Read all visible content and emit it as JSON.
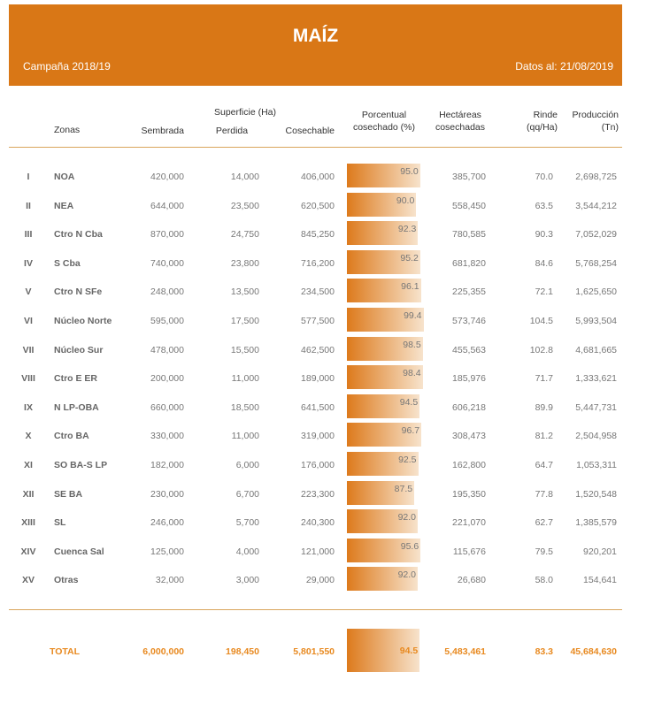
{
  "header": {
    "title": "MAÍZ",
    "campaign": "Campaña 2018/19",
    "date": "Datos al: 21/08/2019"
  },
  "columns": {
    "zonas": "Zonas",
    "superficie": "Superficie (Ha)",
    "sembrada": "Sembrada",
    "perdida": "Perdida",
    "cosechable": "Cosechable",
    "porcentual_1": "Porcentual",
    "porcentual_2": "cosechado (%)",
    "hectareas_1": "Hectáreas",
    "hectareas_2": "cosechadas",
    "rinde_1": "Rinde",
    "rinde_2": "(qq/Ha)",
    "produccion_1": "Producción",
    "produccion_2": "(Tn)"
  },
  "rows": [
    {
      "num": "I",
      "zona": "NOA",
      "sembrada": "420,000",
      "perdida": "14,000",
      "cosechable": "406,000",
      "pct": 95.0,
      "pct_label": "95.0",
      "hectareas": "385,700",
      "rinde": "70.0",
      "produccion": "2,698,725"
    },
    {
      "num": "II",
      "zona": "NEA",
      "sembrada": "644,000",
      "perdida": "23,500",
      "cosechable": "620,500",
      "pct": 90.0,
      "pct_label": "90.0",
      "hectareas": "558,450",
      "rinde": "63.5",
      "produccion": "3,544,212"
    },
    {
      "num": "III",
      "zona": "Ctro N Cba",
      "sembrada": "870,000",
      "perdida": "24,750",
      "cosechable": "845,250",
      "pct": 92.3,
      "pct_label": "92.3",
      "hectareas": "780,585",
      "rinde": "90.3",
      "produccion": "7,052,029"
    },
    {
      "num": "IV",
      "zona": "S Cba",
      "sembrada": "740,000",
      "perdida": "23,800",
      "cosechable": "716,200",
      "pct": 95.2,
      "pct_label": "95.2",
      "hectareas": "681,820",
      "rinde": "84.6",
      "produccion": "5,768,254"
    },
    {
      "num": "V",
      "zona": "Ctro N SFe",
      "sembrada": "248,000",
      "perdida": "13,500",
      "cosechable": "234,500",
      "pct": 96.1,
      "pct_label": "96.1",
      "hectareas": "225,355",
      "rinde": "72.1",
      "produccion": "1,625,650"
    },
    {
      "num": "VI",
      "zona": "Núcleo Norte",
      "sembrada": "595,000",
      "perdida": "17,500",
      "cosechable": "577,500",
      "pct": 99.4,
      "pct_label": "99.4",
      "hectareas": "573,746",
      "rinde": "104.5",
      "produccion": "5,993,504"
    },
    {
      "num": "VII",
      "zona": "Núcleo Sur",
      "sembrada": "478,000",
      "perdida": "15,500",
      "cosechable": "462,500",
      "pct": 98.5,
      "pct_label": "98.5",
      "hectareas": "455,563",
      "rinde": "102.8",
      "produccion": "4,681,665"
    },
    {
      "num": "VIII",
      "zona": "Ctro E ER",
      "sembrada": "200,000",
      "perdida": "11,000",
      "cosechable": "189,000",
      "pct": 98.4,
      "pct_label": "98.4",
      "hectareas": "185,976",
      "rinde": "71.7",
      "produccion": "1,333,621"
    },
    {
      "num": "IX",
      "zona": "N LP-OBA",
      "sembrada": "660,000",
      "perdida": "18,500",
      "cosechable": "641,500",
      "pct": 94.5,
      "pct_label": "94.5",
      "hectareas": "606,218",
      "rinde": "89.9",
      "produccion": "5,447,731"
    },
    {
      "num": "X",
      "zona": "Ctro BA",
      "sembrada": "330,000",
      "perdida": "11,000",
      "cosechable": "319,000",
      "pct": 96.7,
      "pct_label": "96.7",
      "hectareas": "308,473",
      "rinde": "81.2",
      "produccion": "2,504,958"
    },
    {
      "num": "XI",
      "zona": "SO BA-S LP",
      "sembrada": "182,000",
      "perdida": "6,000",
      "cosechable": "176,000",
      "pct": 92.5,
      "pct_label": "92.5",
      "hectareas": "162,800",
      "rinde": "64.7",
      "produccion": "1,053,311"
    },
    {
      "num": "XII",
      "zona": "SE BA",
      "sembrada": "230,000",
      "perdida": "6,700",
      "cosechable": "223,300",
      "pct": 87.5,
      "pct_label": "87.5",
      "hectareas": "195,350",
      "rinde": "77.8",
      "produccion": "1,520,548"
    },
    {
      "num": "XIII",
      "zona": "SL",
      "sembrada": "246,000",
      "perdida": "5,700",
      "cosechable": "240,300",
      "pct": 92.0,
      "pct_label": "92.0",
      "hectareas": "221,070",
      "rinde": "62.7",
      "produccion": "1,385,579"
    },
    {
      "num": "XIV",
      "zona": "Cuenca Sal",
      "sembrada": "125,000",
      "perdida": "4,000",
      "cosechable": "121,000",
      "pct": 95.6,
      "pct_label": "95.6",
      "hectareas": "115,676",
      "rinde": "79.5",
      "produccion": "920,201"
    },
    {
      "num": "XV",
      "zona": "Otras",
      "sembrada": "32,000",
      "perdida": "3,000",
      "cosechable": "29,000",
      "pct": 92.0,
      "pct_label": "92.0",
      "hectareas": "26,680",
      "rinde": "58.0",
      "produccion": "154,641"
    }
  ],
  "total": {
    "label": "TOTAL",
    "sembrada": "6,000,000",
    "perdida": "198,450",
    "cosechable": "5,801,550",
    "pct": 94.5,
    "pct_label": "94.5",
    "hectareas": "5,483,461",
    "rinde": "83.3",
    "produccion": "45,684,630"
  },
  "colors": {
    "accent": "#D97716"
  }
}
